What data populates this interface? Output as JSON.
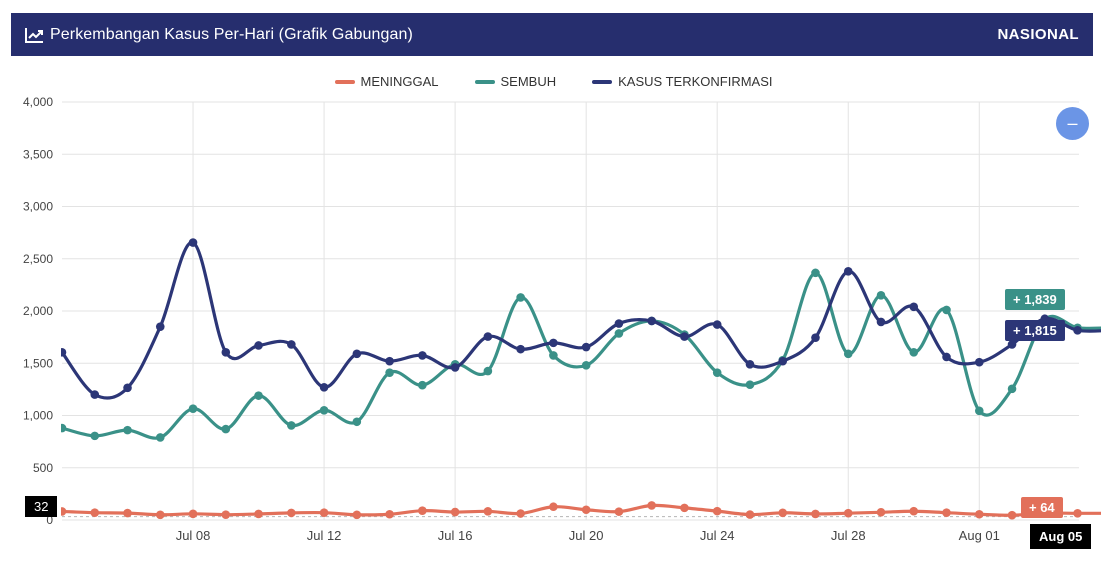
{
  "header": {
    "title": "Perkembangan Kasus Per-Hari (Grafik Gabungan)",
    "scope": "NASIONAL",
    "icon": "line-chart-icon"
  },
  "controls": {
    "zoom_out_symbol": "–"
  },
  "crosshair": {
    "y_label": "32",
    "x_label": "Aug 05",
    "tooltips": [
      {
        "text": "+ 1,839",
        "series": "SEMBUH",
        "color": "#3a9188"
      },
      {
        "text": "+ 1,815",
        "series": "KASUS TERKONFIRMASI",
        "color": "#2c3677"
      },
      {
        "text": "+ 64",
        "series": "MENINGGAL",
        "color": "#e2705a"
      }
    ]
  },
  "chart_data": {
    "type": "line",
    "title": "Perkembangan Kasus Per-Hari (Grafik Gabungan)",
    "x": [
      "Jul 04",
      "Jul 05",
      "Jul 06",
      "Jul 07",
      "Jul 08",
      "Jul 09",
      "Jul 10",
      "Jul 11",
      "Jul 12",
      "Jul 13",
      "Jul 14",
      "Jul 15",
      "Jul 16",
      "Jul 17",
      "Jul 18",
      "Jul 19",
      "Jul 20",
      "Jul 21",
      "Jul 22",
      "Jul 23",
      "Jul 24",
      "Jul 25",
      "Jul 26",
      "Jul 27",
      "Jul 28",
      "Jul 29",
      "Jul 30",
      "Jul 31",
      "Aug 01",
      "Aug 02",
      "Aug 03",
      "Aug 04",
      "Aug 05"
    ],
    "x_ticks": [
      "Jul 08",
      "Jul 12",
      "Jul 16",
      "Jul 20",
      "Jul 24",
      "Jul 28",
      "Aug 01",
      "Aug 05"
    ],
    "y_ticks": [
      "4,000",
      "3,500",
      "3,000",
      "2,500",
      "2,000",
      "1,500",
      "1,000",
      "500",
      "0"
    ],
    "ylim": [
      0,
      4000
    ],
    "grid": true,
    "legend_position": "top-center",
    "series": [
      {
        "name": "MENINGGAL",
        "color": "#e2705a",
        "values": [
          82,
          70,
          66,
          50,
          59,
          51,
          58,
          68,
          70,
          50,
          55,
          89,
          76,
          83,
          62,
          127,
          98,
          80,
          139,
          116,
          85,
          52,
          69,
          58,
          65,
          74,
          84,
          70,
          55,
          46,
          65,
          64,
          64
        ]
      },
      {
        "name": "SEMBUH",
        "color": "#3a9188",
        "values": [
          880,
          805,
          860,
          790,
          1065,
          870,
          1190,
          905,
          1050,
          940,
          1410,
          1290,
          1490,
          1425,
          2130,
          1575,
          1480,
          1785,
          1905,
          1775,
          1410,
          1295,
          1530,
          2365,
          1590,
          2150,
          1605,
          2010,
          1045,
          1255,
          1918,
          1839,
          1839
        ]
      },
      {
        "name": "KASUS TERKONFIRMASI",
        "color": "#2c3677",
        "values": [
          1605,
          1200,
          1265,
          1850,
          2655,
          1605,
          1670,
          1680,
          1270,
          1590,
          1520,
          1575,
          1460,
          1755,
          1635,
          1695,
          1655,
          1880,
          1905,
          1755,
          1870,
          1490,
          1520,
          1745,
          2380,
          1895,
          2040,
          1560,
          1510,
          1680,
          1926,
          1815,
          1815
        ]
      }
    ]
  }
}
